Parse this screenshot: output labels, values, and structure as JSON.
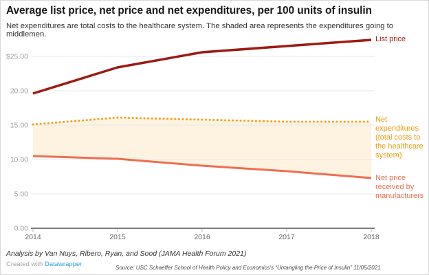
{
  "title": "Average list price, net price and net expenditures, per 100 units of insulin",
  "subtitle": "Net expenditures are total costs to the healthcare system. The shaded area represents the expenditures going to middlemen.",
  "chart_data": {
    "type": "line",
    "x": [
      2014,
      2015,
      2016,
      2017,
      2018
    ],
    "x_ticks": [
      "2014",
      "2015",
      "2016",
      "2017",
      "2018"
    ],
    "series": [
      {
        "id": "list-price",
        "name": "List price",
        "values": [
          19.6,
          23.4,
          25.6,
          26.5,
          27.4
        ],
        "color": "#9c1b13",
        "style": "solid",
        "width": 3.5
      },
      {
        "id": "net-expenditures",
        "name": "Net expenditures (total costs to the healthcare system)",
        "values": [
          15.1,
          16.1,
          15.8,
          15.5,
          15.5
        ],
        "color": "#f5a01e",
        "style": "dotted",
        "width": 3
      },
      {
        "id": "net-price",
        "name": "Net price received by manufacturers",
        "values": [
          10.5,
          10.1,
          9.1,
          8.3,
          7.3
        ],
        "color": "#ef6e51",
        "style": "solid",
        "width": 3
      }
    ],
    "area_between": {
      "upper": "net-expenditures",
      "lower": "net-price",
      "fill": "#fdf3e0",
      "meaning": "expenditures going to middlemen"
    },
    "y_ticks": [
      {
        "value": 0,
        "label": "0.00"
      },
      {
        "value": 5,
        "label": "5.00"
      },
      {
        "value": 10,
        "label": "10.00"
      },
      {
        "value": 15,
        "label": "15.00"
      },
      {
        "value": 20,
        "label": "20.00"
      },
      {
        "value": 25,
        "label": "$25.00"
      }
    ],
    "ylim": [
      0,
      27.5
    ],
    "grid": true,
    "legend_position": "right",
    "colors": {
      "grid": "#e9e9e9",
      "axis": "#7d7d7d",
      "tick": "#b4b4b4",
      "y_label": "#9e9e9e",
      "x_label": "#666666"
    }
  },
  "footer": {
    "analysis": "Analysis by Van Nuys, Ribero, Ryan, and Sood (JAMA Health Forum 2021)",
    "created_with": "Created with",
    "created_with_link": "Datawrapper",
    "source": "Source: USC Schaeffer School of Health Policy and Economics's “Untangling the Price of Insulin” 11/05/2021"
  }
}
